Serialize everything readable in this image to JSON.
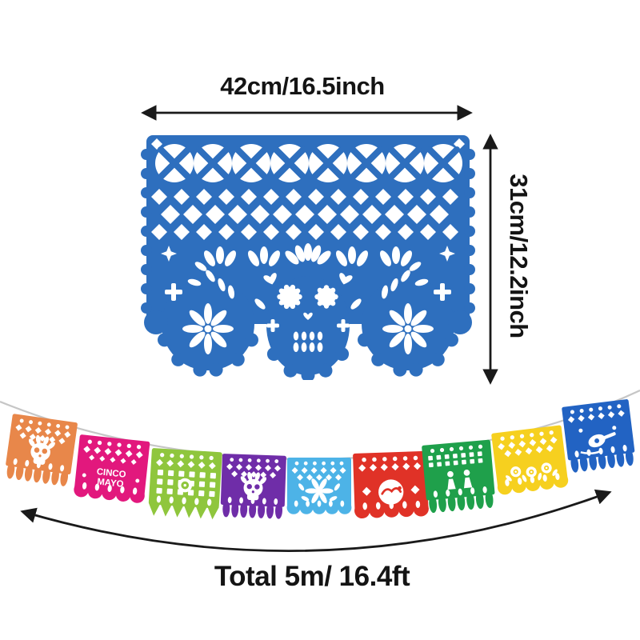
{
  "product_diagram": {
    "width_label": "42cm/16.5inch",
    "height_label": "31cm/12.2inch",
    "total_length_label": "Total 5m/ 16.4ft"
  },
  "main_panel": {
    "name": "blue-papel-picado-panel",
    "motif": "sugar-skull-with-flowers-and-lattice",
    "color": "#2e6fbe"
  },
  "banner_string": {
    "string_color": "#c6c6c6",
    "panels": [
      {
        "name": "orange-skull-panel",
        "color": "#e8874a",
        "motif": "skull"
      },
      {
        "name": "pink-cinco-de-mayo-panel",
        "color": "#e2187d",
        "motif": "text",
        "text_lines": [
          "CINCO",
          "MAYO"
        ]
      },
      {
        "name": "light-green-lattice-panel",
        "color": "#8fc63d",
        "motif": "lattice"
      },
      {
        "name": "purple-skull-panel",
        "color": "#6f2da8",
        "motif": "skull"
      },
      {
        "name": "sky-blue-floral-panel",
        "color": "#4db3e7",
        "motif": "floral"
      },
      {
        "name": "red-bird-panel",
        "color": "#e03227",
        "motif": "bird"
      },
      {
        "name": "green-figures-panel",
        "color": "#1fa04b",
        "motif": "figures"
      },
      {
        "name": "yellow-roses-panel",
        "color": "#f6d01f",
        "motif": "roses"
      },
      {
        "name": "blue-guitar-panel",
        "color": "#2263c3",
        "motif": "guitar"
      }
    ]
  },
  "arrow_color": "#1a1a1a",
  "background_color": "#ffffff"
}
